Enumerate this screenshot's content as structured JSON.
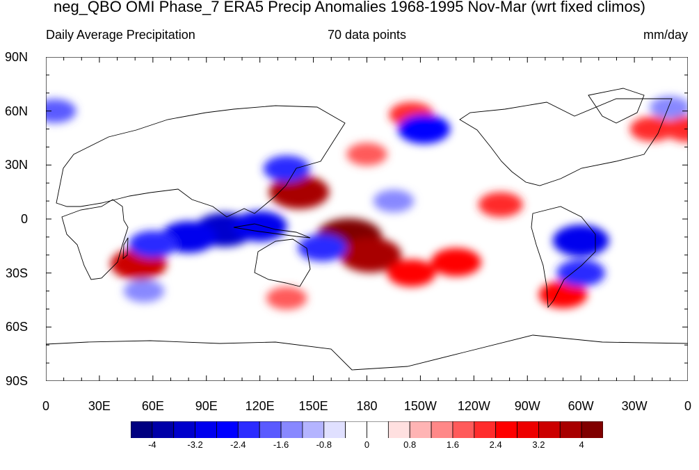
{
  "title": "neg_QBO OMI Phase_7 ERA5 Precip Anomalies 1968-1995 Nov-Mar (wrt fixed climos)",
  "subtitle_left": "Daily Average Precipitation",
  "subtitle_center": "70 data points",
  "subtitle_right": "mm/day",
  "lat_labels": [
    "90N",
    "60N",
    "30N",
    "0",
    "30S",
    "60S",
    "90S"
  ],
  "lon_labels": [
    "0",
    "30E",
    "60E",
    "90E",
    "120E",
    "150E",
    "180",
    "150W",
    "120W",
    "90W",
    "60W",
    "30W",
    "0"
  ],
  "colorbar": {
    "colors": [
      "#000080",
      "#0000a8",
      "#0000cc",
      "#0000ee",
      "#0000ff",
      "#2c2cff",
      "#5a5aff",
      "#8888ff",
      "#b4b4ff",
      "#e0e0ff",
      "#ffffff",
      "#ffffff",
      "#ffe0e0",
      "#ffb4b4",
      "#ff8888",
      "#ff5a5a",
      "#ff2c2c",
      "#ff0000",
      "#ee0000",
      "#cc0000",
      "#a80000",
      "#800000"
    ],
    "labels": [
      "-4",
      "-3.2",
      "-2.4",
      "-1.6",
      "-0.8",
      "0",
      "0.8",
      "1.6",
      "2.4",
      "3.2",
      "4"
    ]
  },
  "anomalies": [
    {
      "lon": 170,
      "lat": -10,
      "value": 4.2
    },
    {
      "lon": 182,
      "lat": -20,
      "value": 3.8
    },
    {
      "lon": 142,
      "lat": 15,
      "value": 3.6
    },
    {
      "lon": 205,
      "lat": -30,
      "value": 2.4
    },
    {
      "lon": 230,
      "lat": -24,
      "value": 2.6
    },
    {
      "lon": 52,
      "lat": -25,
      "value": 3.2
    },
    {
      "lon": 255,
      "lat": 8,
      "value": 2.0
    },
    {
      "lon": 290,
      "lat": -42,
      "value": 2.4
    },
    {
      "lon": 180,
      "lat": 36,
      "value": 1.6
    },
    {
      "lon": 340,
      "lat": 50,
      "value": 2.0
    },
    {
      "lon": 360,
      "lat": 50,
      "value": 2.2
    },
    {
      "lon": 205,
      "lat": 58,
      "value": 2.0
    },
    {
      "lon": 135,
      "lat": -44,
      "value": 1.6
    },
    {
      "lon": 100,
      "lat": -6,
      "value": -3.6
    },
    {
      "lon": 80,
      "lat": -10,
      "value": -3.2
    },
    {
      "lon": 120,
      "lat": -4,
      "value": -3.0
    },
    {
      "lon": 60,
      "lat": -14,
      "value": -2.4
    },
    {
      "lon": 135,
      "lat": 28,
      "value": -2.2
    },
    {
      "lon": 155,
      "lat": -16,
      "value": -2.4
    },
    {
      "lon": 300,
      "lat": -12,
      "value": -3.2
    },
    {
      "lon": 300,
      "lat": -30,
      "value": -2.4
    },
    {
      "lon": 195,
      "lat": 10,
      "value": -1.6
    },
    {
      "lon": 212,
      "lat": 50,
      "value": -2.8
    },
    {
      "lon": 55,
      "lat": -40,
      "value": -1.6
    },
    {
      "lon": 350,
      "lat": 62,
      "value": -1.6
    },
    {
      "lon": 5,
      "lat": 60,
      "value": -1.8
    }
  ]
}
